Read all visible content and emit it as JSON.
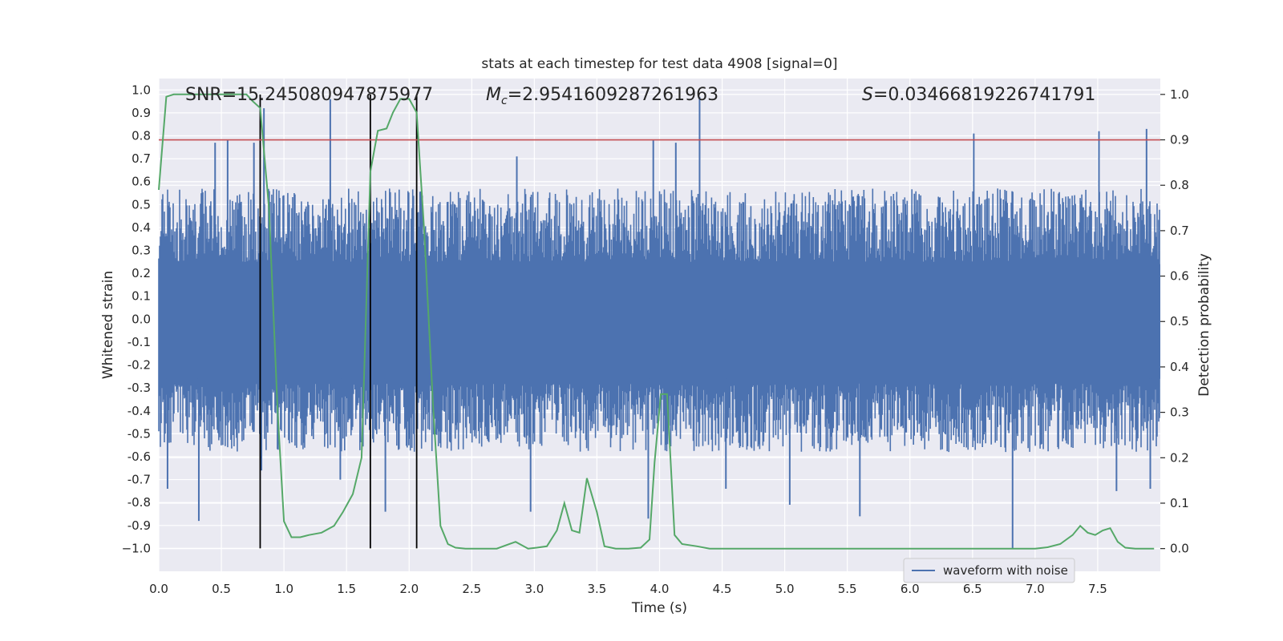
{
  "chart_data": {
    "type": "line",
    "title": "stats at each timestep for test data 4908 [signal=0]",
    "xlabel": "Time (s)",
    "ylabel_left": "Whitened strain",
    "ylabel_right": "Detection probability",
    "xlim": [
      0.0,
      8.0
    ],
    "ylim_left": [
      -1.1,
      1.05
    ],
    "ylim_right": [
      -0.05,
      1.035
    ],
    "x_ticks": [
      "0.0",
      "0.5",
      "1.0",
      "1.5",
      "2.0",
      "2.5",
      "3.0",
      "3.5",
      "4.0",
      "4.5",
      "5.0",
      "5.5",
      "6.0",
      "6.5",
      "7.0",
      "7.5"
    ],
    "y_ticks_left": [
      "1.0",
      "0.9",
      "0.8",
      "0.7",
      "0.6",
      "0.5",
      "0.4",
      "0.3",
      "0.2",
      "0.1",
      "0.0",
      "-0.1",
      "-0.2",
      "-0.3",
      "-0.4",
      "-0.5",
      "-0.6",
      "-0.7",
      "-0.8",
      "-0.9",
      "−1.0"
    ],
    "y_ticks_right": [
      "1.0",
      "0.9",
      "0.8",
      "0.7",
      "0.6",
      "0.5",
      "0.4",
      "0.3",
      "0.2",
      "0.1",
      "0.0"
    ],
    "annotations": {
      "snr": "SNR=15.245080947875977",
      "mc_symbol": "M",
      "mc_sub": "c",
      "mc_value": "=2.9541609287261963",
      "s_symbol": "S",
      "s_value": "=0.03466819226741791"
    },
    "legend": {
      "label": "waveform with noise",
      "placement": "lower-right"
    },
    "threshold": {
      "value": 0.9,
      "axis": "right",
      "color": "#c44e52"
    },
    "vertical_lines": [
      0.81,
      1.69,
      2.06
    ],
    "series": [
      {
        "name": "waveform with noise",
        "axis": "left",
        "color": "#4c72b0",
        "style": "dense noise, mostly within ±0.6 with spikes",
        "spikes": [
          [
            0.07,
            -0.74
          ],
          [
            0.32,
            -0.88
          ],
          [
            0.45,
            0.77
          ],
          [
            0.55,
            0.78
          ],
          [
            0.76,
            0.77
          ],
          [
            0.82,
            -0.66
          ],
          [
            0.84,
            0.92
          ],
          [
            1.37,
            0.96
          ],
          [
            1.45,
            -0.7
          ],
          [
            1.81,
            -0.84
          ],
          [
            2.86,
            0.71
          ],
          [
            2.97,
            -0.84
          ],
          [
            3.91,
            -0.87
          ],
          [
            3.95,
            0.78
          ],
          [
            4.13,
            0.77
          ],
          [
            4.32,
            0.97
          ],
          [
            4.53,
            -0.74
          ],
          [
            5.04,
            -0.81
          ],
          [
            5.6,
            -0.86
          ],
          [
            6.51,
            0.81
          ],
          [
            6.82,
            -1.0
          ],
          [
            7.51,
            0.82
          ],
          [
            7.65,
            -0.75
          ],
          [
            7.89,
            0.83
          ],
          [
            7.92,
            -0.74
          ]
        ]
      },
      {
        "name": "detection probability",
        "axis": "right",
        "color": "#55a868",
        "x": [
          0.0,
          0.06,
          0.12,
          0.2,
          0.4,
          0.6,
          0.7,
          0.75,
          0.81,
          0.88,
          0.95,
          1.0,
          1.06,
          1.13,
          1.2,
          1.3,
          1.4,
          1.47,
          1.55,
          1.62,
          1.69,
          1.75,
          1.82,
          1.87,
          1.93,
          2.0,
          2.06,
          2.12,
          2.19,
          2.25,
          2.31,
          2.37,
          2.45,
          2.55,
          2.7,
          2.85,
          2.95,
          3.02,
          3.1,
          3.18,
          3.24,
          3.3,
          3.36,
          3.42,
          3.5,
          3.56,
          3.65,
          3.75,
          3.85,
          3.92,
          3.96,
          4.01,
          4.06,
          4.12,
          4.18,
          4.3,
          4.4,
          4.6,
          4.8,
          5.0,
          5.2,
          5.4,
          5.6,
          5.8,
          6.0,
          6.2,
          6.4,
          6.6,
          6.8,
          7.0,
          7.1,
          7.2,
          7.3,
          7.36,
          7.42,
          7.48,
          7.54,
          7.6,
          7.66,
          7.72,
          7.8,
          7.95
        ],
        "y": [
          0.79,
          0.995,
          1.0,
          1.0,
          1.0,
          1.0,
          1.0,
          0.985,
          0.97,
          0.75,
          0.3,
          0.06,
          0.025,
          0.025,
          0.03,
          0.035,
          0.05,
          0.08,
          0.12,
          0.2,
          0.83,
          0.92,
          0.925,
          0.96,
          0.99,
          0.99,
          0.96,
          0.7,
          0.32,
          0.05,
          0.01,
          0.002,
          0.0,
          0.0,
          0.0,
          0.015,
          0.0,
          0.002,
          0.005,
          0.04,
          0.1,
          0.04,
          0.035,
          0.155,
          0.08,
          0.005,
          0.0,
          0.0,
          0.002,
          0.02,
          0.19,
          0.34,
          0.34,
          0.03,
          0.01,
          0.005,
          0.0,
          0.0,
          0.0,
          0.0,
          0.0,
          0.0,
          0.0,
          0.0,
          0.0,
          0.0,
          0.0,
          0.0,
          0.0,
          0.0,
          0.003,
          0.01,
          0.03,
          0.05,
          0.035,
          0.03,
          0.04,
          0.045,
          0.015,
          0.002,
          0.0,
          0.0
        ]
      }
    ]
  }
}
